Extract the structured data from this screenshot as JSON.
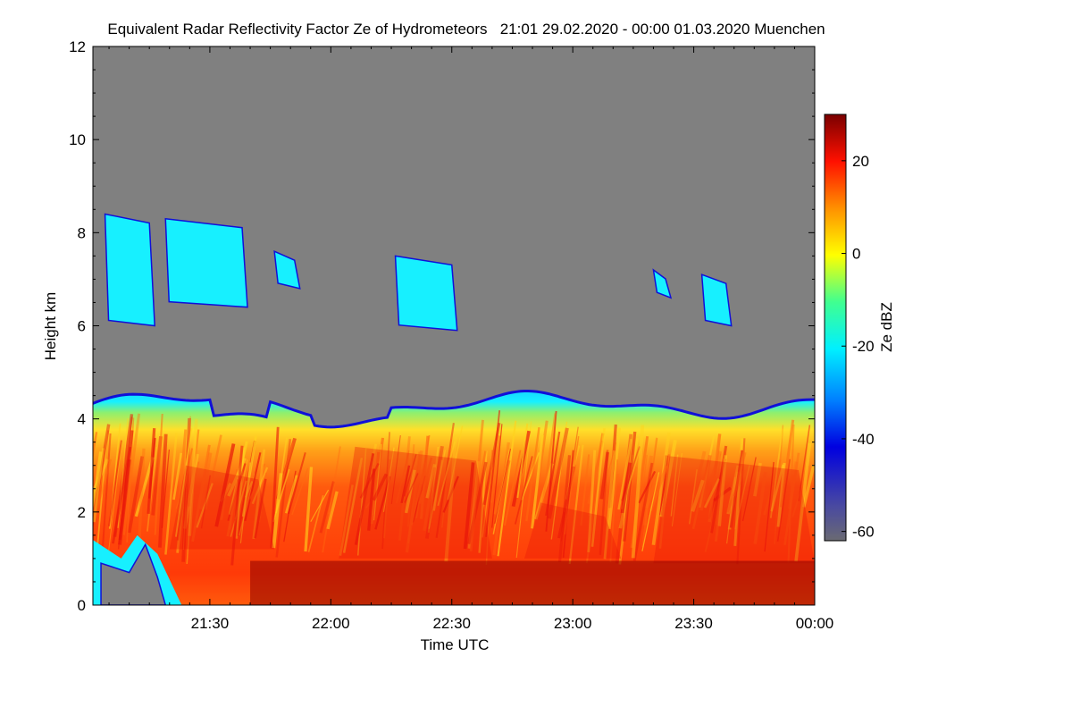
{
  "chart_data": {
    "type": "heatmap",
    "title": "Equivalent Radar Reflectivity Factor Ze of Hydrometeors   21:01 29.02.2020 - 00:00 01.03.2020 Muenchen",
    "xlabel": "Time UTC",
    "ylabel": "Height km",
    "x_ticks": [
      "21:30",
      "22:00",
      "22:30",
      "23:00",
      "23:30",
      "00:00"
    ],
    "x_tick_minutes": [
      30,
      60,
      90,
      120,
      150,
      180
    ],
    "x_range_minutes": [
      1,
      180
    ],
    "y_ticks": [
      0,
      2,
      4,
      6,
      8,
      10,
      12
    ],
    "ylim": [
      0,
      12
    ],
    "background_color": "#808080",
    "colorbar": {
      "label": "Ze dBZ",
      "range": [
        -62,
        30
      ],
      "ticks": [
        -60,
        -40,
        -20,
        0,
        20
      ]
    },
    "colors": {
      "dark_red": "#8b0000",
      "red": "#e8140a",
      "orange": "#ff6a10",
      "yellow": "#ffd21e",
      "cyan": "#17f0ff",
      "blue": "#1010d8",
      "gray_low": "#6a6a72"
    },
    "features": {
      "cloud_top_km": 4.3,
      "melting_layer_km": 0.85,
      "upper_cirrus_km": [
        6.0,
        8.4
      ]
    }
  }
}
